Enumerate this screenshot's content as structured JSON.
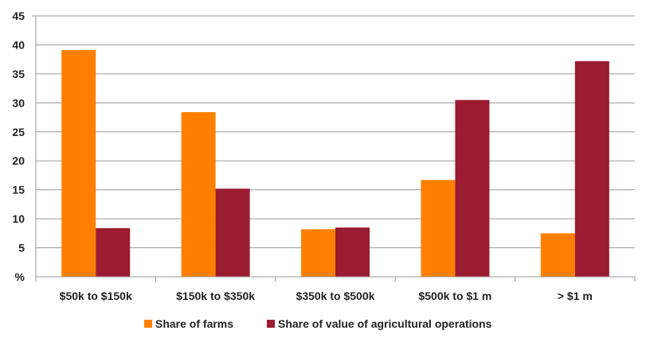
{
  "chart_data": {
    "type": "bar",
    "categories": [
      "$50k to $150k",
      "$150k to $350k",
      "$350k to $500k",
      "$500k to $1 m",
      "> $1 m"
    ],
    "series": [
      {
        "name": "Share of farms",
        "color": "#ff8000",
        "values": [
          39.1,
          28.4,
          8.2,
          16.7,
          7.5
        ]
      },
      {
        "name": "Share of value of agricultural operations",
        "color": "#9b1b30",
        "values": [
          8.4,
          15.2,
          8.5,
          30.5,
          37.2
        ]
      }
    ],
    "yticks": [
      "%",
      "5",
      "10",
      "15",
      "20",
      "25",
      "30",
      "35",
      "40",
      "45"
    ],
    "ylim": [
      0,
      45
    ],
    "grid": true,
    "legend": "bottom"
  }
}
